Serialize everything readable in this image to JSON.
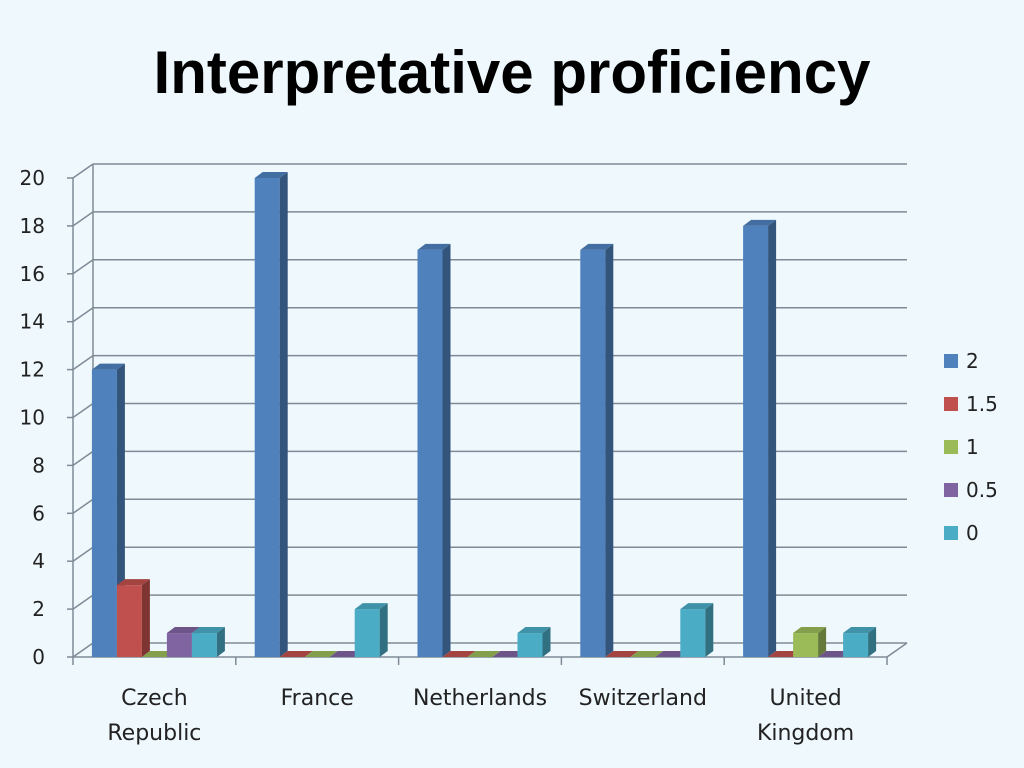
{
  "chart_data": {
    "type": "bar",
    "title": "Interpretative proficiency",
    "categories": [
      [
        "Czech",
        "Republic"
      ],
      [
        "France"
      ],
      [
        "Netherlands"
      ],
      [
        "Switzerland"
      ],
      [
        "United",
        "Kingdom"
      ]
    ],
    "series": [
      {
        "name": "2",
        "color": "#4f81bd",
        "values": [
          12,
          20,
          17,
          17,
          18
        ]
      },
      {
        "name": "1.5",
        "color": "#c0504d",
        "values": [
          3,
          0,
          0,
          0,
          0
        ]
      },
      {
        "name": "1",
        "color": "#9bbb59",
        "values": [
          0,
          0,
          0,
          0,
          1
        ]
      },
      {
        "name": "0.5",
        "color": "#8064a2",
        "values": [
          1,
          0,
          0,
          0,
          0
        ]
      },
      {
        "name": "0",
        "color": "#4bacc6",
        "values": [
          1,
          2,
          1,
          2,
          1
        ]
      }
    ],
    "ylim": [
      0,
      20
    ],
    "yticks": [
      0,
      2,
      4,
      6,
      8,
      10,
      12,
      14,
      16,
      18,
      20
    ],
    "grid": true,
    "legend": "right"
  }
}
